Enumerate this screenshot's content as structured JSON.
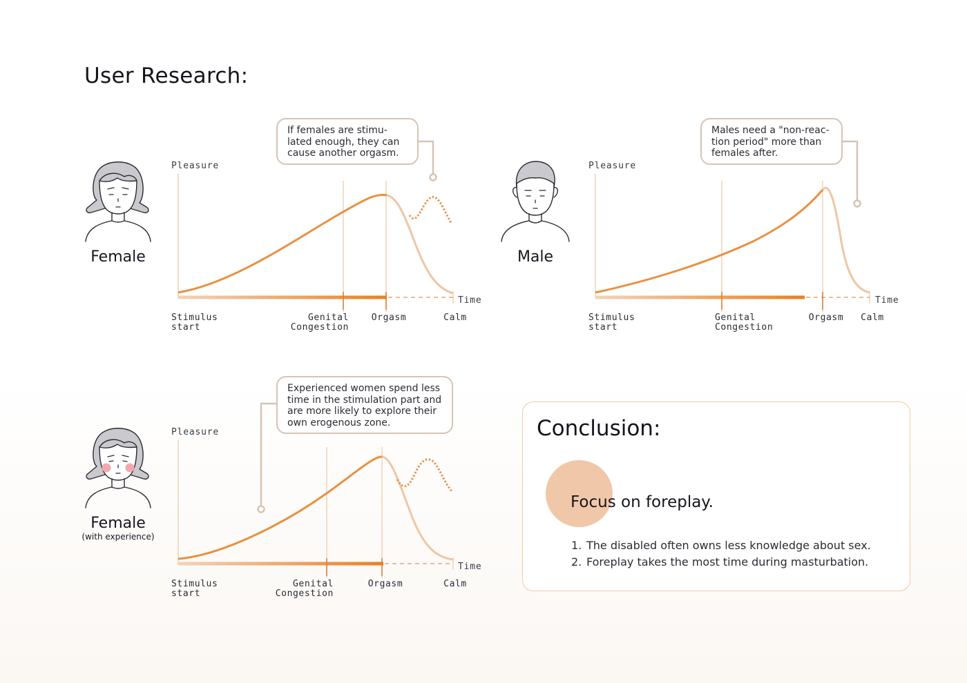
{
  "page": {
    "title": "User Research:"
  },
  "colors": {
    "curve": "#ea8f3f",
    "curve_light": "#eec6a4",
    "stage_line": "#f2d2b7",
    "callout_border": "#d6c3b4",
    "blush": "#f4a8ae",
    "focus_circle": "#f0c7a8"
  },
  "personas": [
    {
      "name": "Female",
      "subtitle": "",
      "icon": "female-face-icon"
    },
    {
      "name": "Male",
      "subtitle": "",
      "icon": "male-face-icon"
    },
    {
      "name": "Female",
      "subtitle": "(with experience)",
      "icon": "female-experienced-face-icon"
    }
  ],
  "callouts": {
    "female": [
      "If females are stimu-",
      "lated enough, they can",
      "cause another orgasm."
    ],
    "male": [
      "Males need a \"non-reac-",
      "tion period\" more than",
      "females after."
    ],
    "experienced": [
      "Experienced women spend less",
      "time in the stimulation part and",
      "are more likely to explore their",
      "own erogenous zone."
    ]
  },
  "chart_data": [
    {
      "type": "diagram",
      "ylabel": "Pleasure",
      "xlabel": "Time",
      "stages": [
        [
          "Stimulus",
          "start"
        ],
        [
          "Genital",
          "Congestion"
        ],
        [
          "Orgasm"
        ],
        [
          "Calm"
        ]
      ],
      "rebound": true
    },
    {
      "type": "diagram",
      "ylabel": "Pleasure",
      "xlabel": "Time",
      "stages": [
        [
          "Stimulus",
          "start"
        ],
        [
          "Genital",
          "Congestion"
        ],
        [
          "Orgasm"
        ],
        [
          "Calm"
        ]
      ],
      "rebound": false
    },
    {
      "type": "diagram",
      "ylabel": "Pleasure",
      "xlabel": "Time",
      "stages": [
        [
          "Stimulus",
          "start"
        ],
        [
          "Genital",
          "Congestion"
        ],
        [
          "Orgasm"
        ],
        [
          "Calm"
        ]
      ],
      "rebound": true
    }
  ],
  "conclusion": {
    "title": "Conclusion:",
    "focus": "Focus on foreplay.",
    "points": [
      {
        "num": "1.",
        "text": "The disabled often owns less knowledge about sex."
      },
      {
        "num": "2.",
        "text": "Foreplay takes the most time during masturbation."
      }
    ]
  }
}
